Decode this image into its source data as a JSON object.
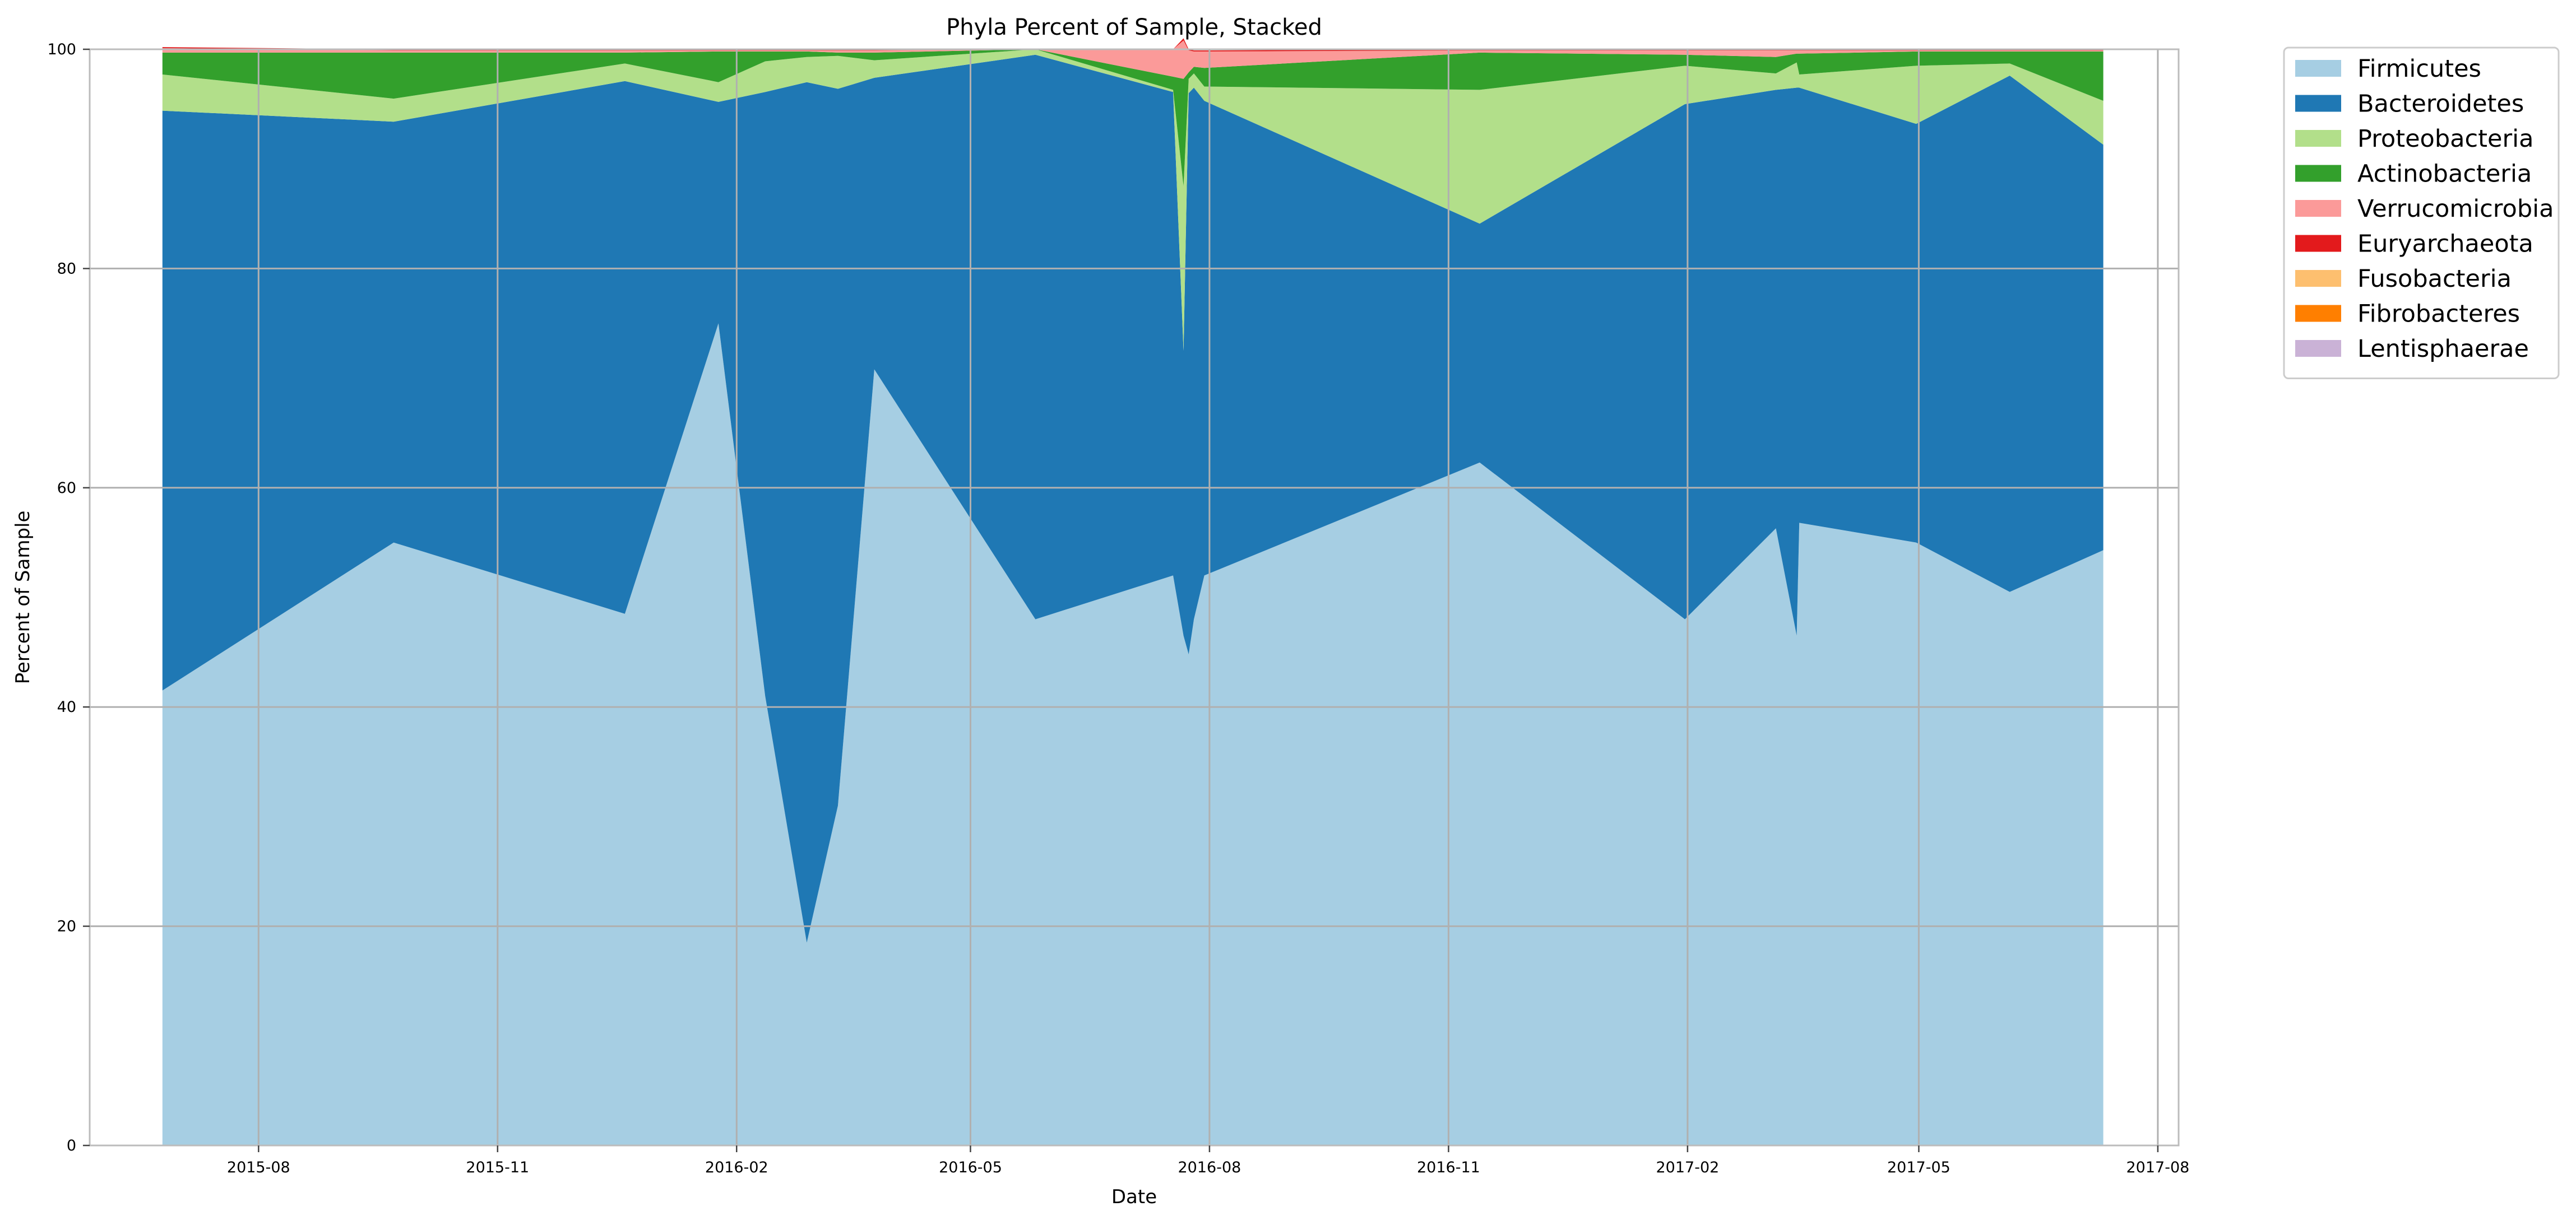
{
  "chart_data": {
    "type": "area",
    "stacked": true,
    "title": "Phyla Percent of Sample, Stacked",
    "xlabel": "Date",
    "ylabel": "Percent of Sample",
    "x_axis_type": "date",
    "xlim": [
      "2015-05-28",
      "2017-08-09"
    ],
    "ylim": [
      0,
      100
    ],
    "x_ticks": [
      "2015-08-01",
      "2015-11-01",
      "2016-02-01",
      "2016-05-01",
      "2016-08-01",
      "2016-11-01",
      "2017-02-01",
      "2017-05-01",
      "2017-08-01"
    ],
    "x_tick_labels": [
      "2015-08",
      "2015-11",
      "2016-02",
      "2016-05",
      "2016-08",
      "2016-11",
      "2017-02",
      "2017-05",
      "2017-08"
    ],
    "y_ticks": [
      0,
      20,
      40,
      60,
      80,
      100
    ],
    "y_tick_labels": [
      "0",
      "20",
      "40",
      "60",
      "80",
      "100"
    ],
    "grid": true,
    "legend_position": "outside-top-right",
    "x": [
      "2015-06-25",
      "2015-09-22",
      "2015-12-20",
      "2016-01-25",
      "2016-02-12",
      "2016-02-28",
      "2016-03-11",
      "2016-03-25",
      "2016-05-26",
      "2016-07-18",
      "2016-07-22",
      "2016-07-24",
      "2016-07-26",
      "2016-07-30",
      "2016-11-13",
      "2017-01-31",
      "2017-03-07",
      "2017-03-15",
      "2017-03-16",
      "2017-04-30",
      "2017-06-05",
      "2017-07-11"
    ],
    "series": [
      {
        "name": "Firmicutes",
        "color": "#a6cee3",
        "values": [
          41.5,
          55.0,
          48.5,
          75.0,
          41.0,
          18.5,
          31.0,
          70.8,
          48.0,
          52.0,
          46.5,
          44.8,
          48.0,
          52.0,
          62.3,
          48.0,
          56.3,
          46.5,
          56.8,
          55.0,
          50.5,
          54.3
        ]
      },
      {
        "name": "Bacteroidetes",
        "color": "#1f78b4",
        "values": [
          52.9,
          38.4,
          48.6,
          20.2,
          55.1,
          78.5,
          65.4,
          26.6,
          51.5,
          44.1,
          26.0,
          51.2,
          48.5,
          43.3,
          21.8,
          47.0,
          40.0,
          50.0,
          39.7,
          38.2,
          47.1,
          37.0
        ]
      },
      {
        "name": "Proteobacteria",
        "color": "#b2df8a",
        "values": [
          3.3,
          2.1,
          1.6,
          1.8,
          2.8,
          2.3,
          3.0,
          1.6,
          0.5,
          0.2,
          15.0,
          1.3,
          1.3,
          1.3,
          12.2,
          3.5,
          1.5,
          2.3,
          1.2,
          5.3,
          1.1,
          4.0
        ]
      },
      {
        "name": "Actinobacteria",
        "color": "#33a02c",
        "values": [
          2.0,
          4.2,
          1.0,
          2.8,
          0.9,
          0.5,
          0.3,
          0.7,
          0.0,
          1.2,
          9.8,
          0.6,
          0.6,
          1.7,
          3.4,
          1.0,
          1.5,
          0.8,
          1.9,
          1.3,
          1.1,
          4.5
        ]
      },
      {
        "name": "Verrucomicrobia",
        "color": "#fb9a99",
        "values": [
          0.4,
          0.2,
          0.2,
          0.1,
          0.1,
          0.1,
          0.2,
          0.2,
          0.0,
          2.5,
          3.5,
          2.0,
          1.4,
          1.5,
          0.2,
          0.4,
          0.6,
          0.3,
          0.3,
          0.1,
          0.1,
          0.1
        ]
      },
      {
        "name": "Euryarchaeota",
        "color": "#e31a1c",
        "values": [
          0.1,
          0.1,
          0.1,
          0.1,
          0.1,
          0.1,
          0.1,
          0.1,
          0.0,
          0.0,
          0.2,
          0.1,
          0.1,
          0.1,
          0.1,
          0.1,
          0.1,
          0.1,
          0.1,
          0.1,
          0.1,
          0.1
        ]
      },
      {
        "name": "Fusobacteria",
        "color": "#fdbf6f",
        "values": [
          0.0,
          0.0,
          0.0,
          0.0,
          0.0,
          0.0,
          0.0,
          0.0,
          0.0,
          0.0,
          0.0,
          0.0,
          0.0,
          0.0,
          0.0,
          0.0,
          0.0,
          0.0,
          0.0,
          0.0,
          0.0,
          0.0
        ]
      },
      {
        "name": "Fibrobacteres",
        "color": "#ff7f00",
        "values": [
          0.0,
          0.0,
          0.0,
          0.0,
          0.0,
          0.0,
          0.0,
          0.0,
          0.0,
          0.0,
          0.0,
          0.0,
          0.0,
          0.0,
          0.0,
          0.0,
          0.0,
          0.0,
          0.0,
          0.0,
          0.0,
          0.0
        ]
      },
      {
        "name": "Lentisphaerae",
        "color": "#cab2d6",
        "values": [
          0.0,
          0.0,
          0.0,
          0.0,
          0.0,
          0.0,
          0.0,
          0.0,
          0.0,
          0.0,
          0.0,
          0.0,
          0.0,
          0.0,
          0.0,
          0.0,
          0.0,
          0.0,
          0.0,
          0.0,
          0.0,
          0.0
        ]
      }
    ]
  }
}
